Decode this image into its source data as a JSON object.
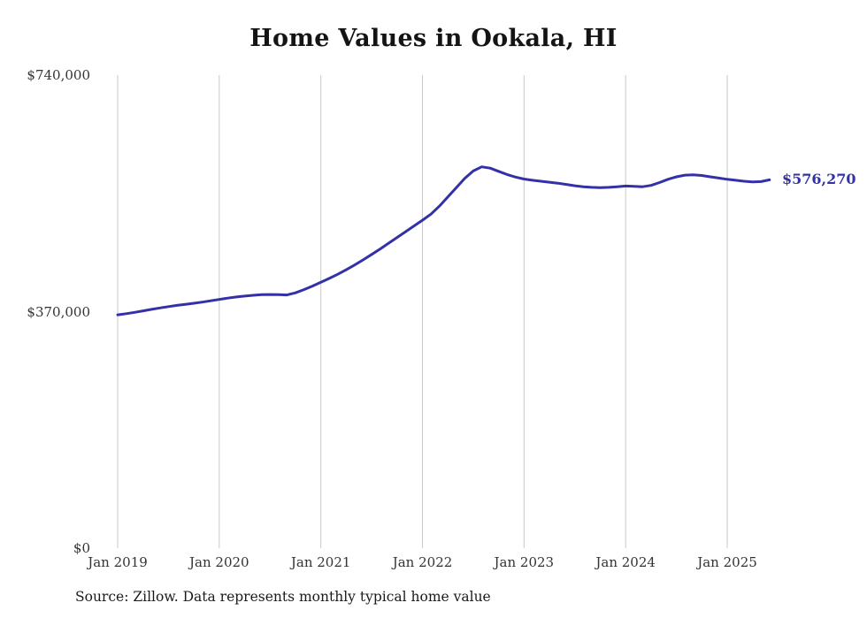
{
  "colors": {
    "line": "#3431a8",
    "grid": "#c9c9c9",
    "title_text": "#141414",
    "tick_text": "#333333"
  },
  "chart_data": {
    "type": "line",
    "title": "Home Values in Ookala, HI",
    "source": "Source: Zillow. Data represents monthly typical home value",
    "end_label": "$576,270",
    "line_color": "#3431a8",
    "grid": "vertical",
    "ylim": [
      0,
      740000
    ],
    "y_ticks": [
      {
        "label": "$740,000",
        "value": 740000
      },
      {
        "label": "$370,000",
        "value": 370000
      },
      {
        "label": "$0",
        "value": 0
      }
    ],
    "x_ticks": [
      {
        "label": "Jan 2019",
        "index": 0
      },
      {
        "label": "Jan 2020",
        "index": 12
      },
      {
        "label": "Jan 2021",
        "index": 24
      },
      {
        "label": "Jan 2022",
        "index": 36
      },
      {
        "label": "Jan 2023",
        "index": 48
      },
      {
        "label": "Jan 2024",
        "index": 60
      },
      {
        "label": "Jan 2025",
        "index": 72
      }
    ],
    "x": [
      "Jan 2019",
      "Feb 2019",
      "Mar 2019",
      "Apr 2019",
      "May 2019",
      "Jun 2019",
      "Jul 2019",
      "Aug 2019",
      "Sep 2019",
      "Oct 2019",
      "Nov 2019",
      "Dec 2019",
      "Jan 2020",
      "Feb 2020",
      "Mar 2020",
      "Apr 2020",
      "May 2020",
      "Jun 2020",
      "Jul 2020",
      "Aug 2020",
      "Sep 2020",
      "Oct 2020",
      "Nov 2020",
      "Dec 2020",
      "Jan 2021",
      "Feb 2021",
      "Mar 2021",
      "Apr 2021",
      "May 2021",
      "Jun 2021",
      "Jul 2021",
      "Aug 2021",
      "Sep 2021",
      "Oct 2021",
      "Nov 2021",
      "Dec 2021",
      "Jan 2022",
      "Feb 2022",
      "Mar 2022",
      "Apr 2022",
      "May 2022",
      "Jun 2022",
      "Jul 2022",
      "Aug 2022",
      "Sep 2022",
      "Oct 2022",
      "Nov 2022",
      "Dec 2022",
      "Jan 2023",
      "Feb 2023",
      "Mar 2023",
      "Apr 2023",
      "May 2023",
      "Jun 2023",
      "Jul 2023",
      "Aug 2023",
      "Sep 2023",
      "Oct 2023",
      "Nov 2023",
      "Dec 2023",
      "Jan 2024",
      "Feb 2024",
      "Mar 2024",
      "Apr 2024",
      "May 2024",
      "Jun 2024",
      "Jul 2024",
      "Aug 2024",
      "Sep 2024",
      "Oct 2024",
      "Nov 2024",
      "Dec 2024",
      "Jan 2025",
      "Feb 2025",
      "Mar 2025",
      "Apr 2025",
      "May 2025",
      "Jun 2025"
    ],
    "values": [
      365000,
      366800,
      368900,
      371300,
      373600,
      375800,
      377900,
      379800,
      381500,
      383200,
      385000,
      387000,
      389100,
      391100,
      392900,
      394400,
      395600,
      396500,
      396900,
      396600,
      396100,
      399500,
      404500,
      410000,
      416000,
      422000,
      428500,
      435500,
      443000,
      451000,
      459500,
      468000,
      477000,
      486000,
      495000,
      504000,
      513000,
      522500,
      535000,
      549500,
      564000,
      578500,
      590000,
      596500,
      594500,
      589500,
      584500,
      580500,
      577500,
      575500,
      574000,
      572500,
      571000,
      569000,
      567000,
      565500,
      564500,
      564000,
      564500,
      565500,
      566500,
      566000,
      565500,
      567500,
      572000,
      577000,
      581000,
      583500,
      584000,
      583000,
      581000,
      579000,
      577000,
      575500,
      574000,
      573000,
      573500,
      576270
    ]
  }
}
